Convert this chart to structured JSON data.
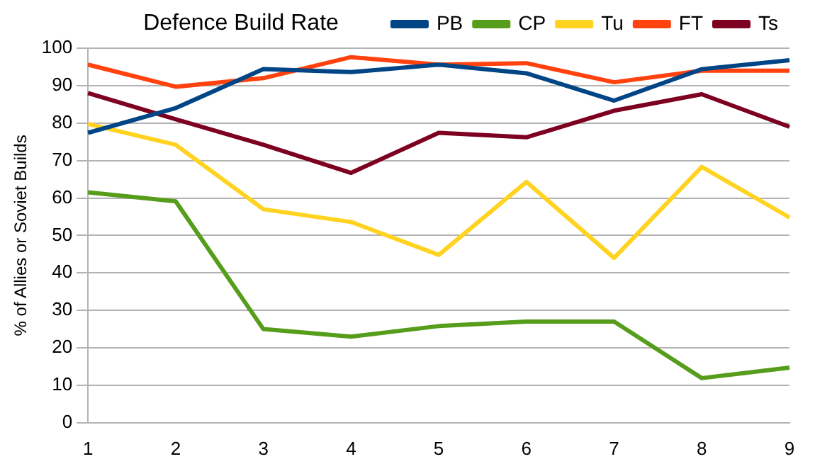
{
  "chart_data": {
    "type": "line",
    "title": "Defence Build Rate",
    "ylabel": "% of Allies or Soviet Builds",
    "categories": [
      "1",
      "2",
      "3",
      "4",
      "5",
      "6",
      "7",
      "8",
      "9"
    ],
    "series": [
      {
        "name": "PB",
        "color": "#004586",
        "values": [
          77.4,
          84,
          94.4,
          93.6,
          95.6,
          93.3,
          86,
          94.4,
          96.8
        ]
      },
      {
        "name": "CP",
        "color": "#579d1c",
        "values": [
          61.5,
          59.1,
          25,
          23,
          25.8,
          27,
          27,
          11.9,
          14.7
        ]
      },
      {
        "name": "Tu",
        "color": "#ffd320",
        "values": [
          79.8,
          74.2,
          57,
          53.6,
          44.8,
          64.3,
          44,
          68.3,
          54.8
        ]
      },
      {
        "name": "FT",
        "color": "#ff420e",
        "values": [
          95.6,
          89.7,
          92,
          97.6,
          95.6,
          96,
          90.9,
          94,
          94
        ]
      },
      {
        "name": "Ts",
        "color": "#7e0021",
        "values": [
          88,
          81,
          74.2,
          66.7,
          77.4,
          76.2,
          83.3,
          87.7,
          79
        ]
      }
    ],
    "ylim": [
      0,
      100
    ],
    "yticks": [
      0,
      10,
      20,
      30,
      40,
      50,
      60,
      70,
      80,
      90,
      100
    ],
    "grid": "y",
    "legend": "top right",
    "marker": "none",
    "line_style": "solid"
  }
}
